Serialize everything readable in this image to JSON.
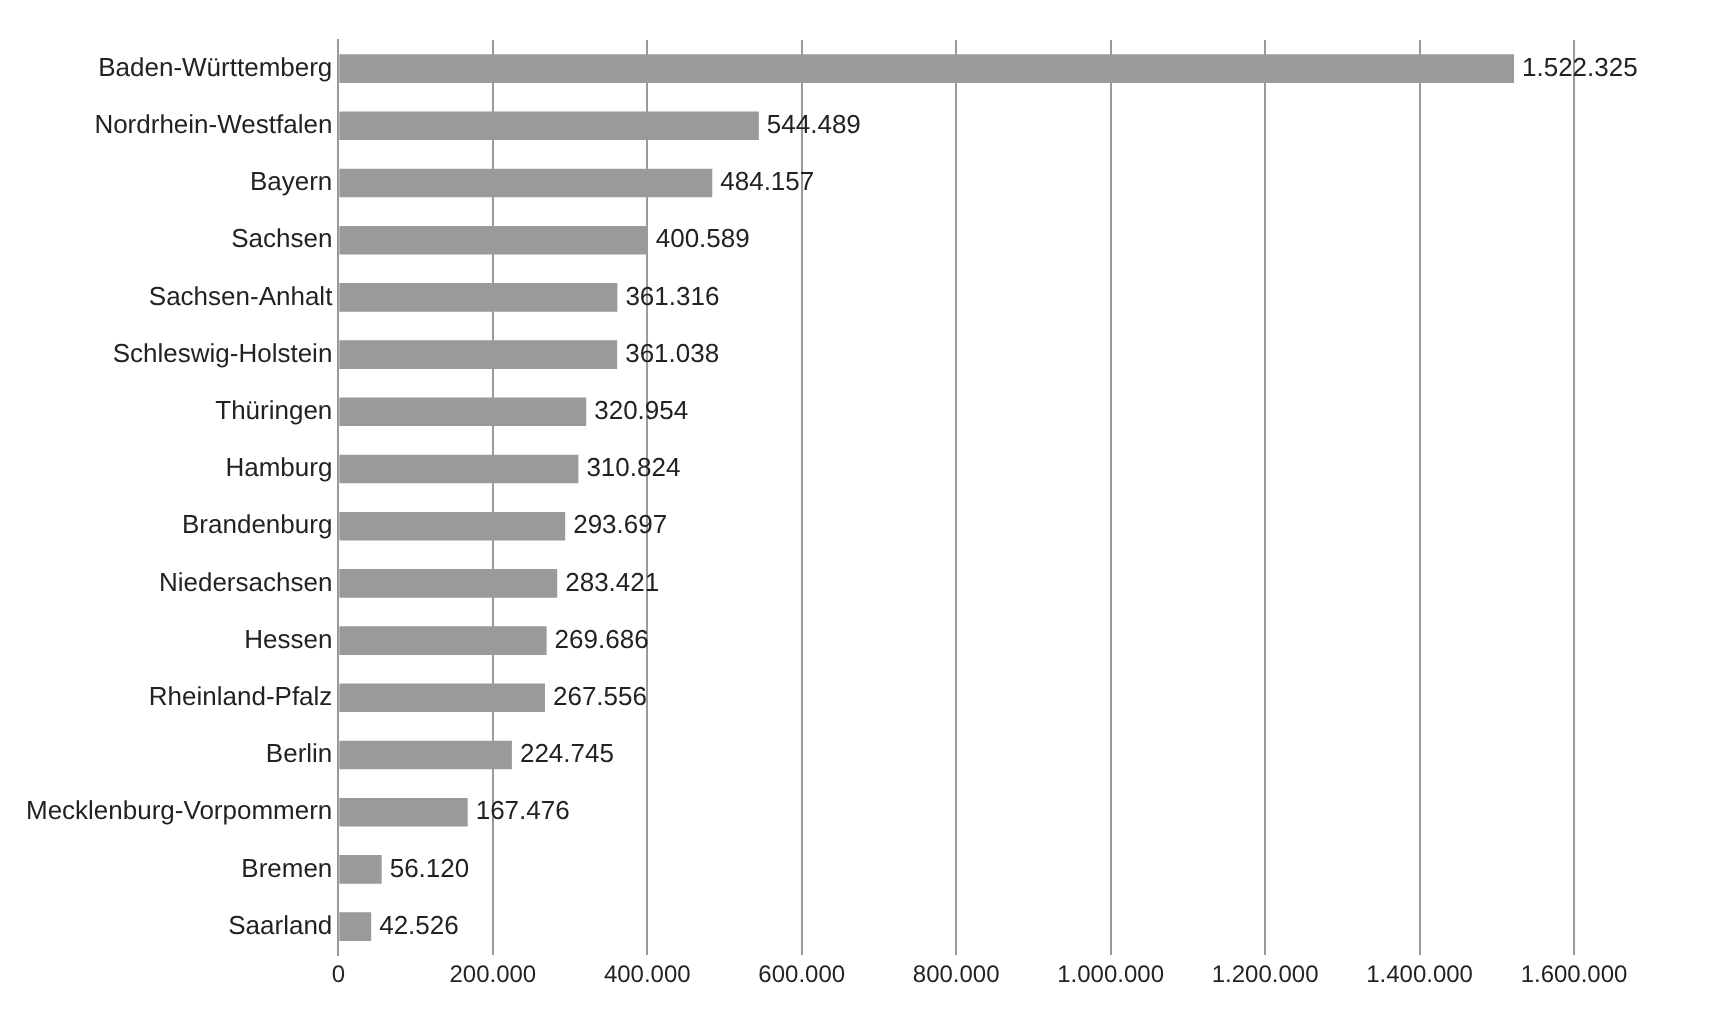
{
  "chart_data": {
    "type": "bar",
    "orientation": "horizontal",
    "categories": [
      "Baden-Württemberg",
      "Nordrhein-Westfalen",
      "Bayern",
      "Sachsen",
      "Sachsen-Anhalt",
      "Schleswig-Holstein",
      "Thüringen",
      "Hamburg",
      "Brandenburg",
      "Niedersachsen",
      "Hessen",
      "Rheinland-Pfalz",
      "Berlin",
      "Mecklenburg-Vorpommern",
      "Bremen",
      "Saarland"
    ],
    "values": [
      1522325,
      544489,
      484157,
      400589,
      361316,
      361038,
      320954,
      310824,
      293697,
      283421,
      269686,
      267556,
      224745,
      167476,
      56120,
      42526
    ],
    "value_labels": [
      "1.522.325",
      "544.489",
      "484.157",
      "400.589",
      "361.316",
      "361.038",
      "320.954",
      "310.824",
      "293.697",
      "283.421",
      "269.686",
      "267.556",
      "224.745",
      "167.476",
      "56.120",
      "42.526"
    ],
    "color": "#9a9a9a",
    "xlim": [
      0,
      1600000
    ],
    "xticks": [
      {
        "value": 0,
        "label": "0"
      },
      {
        "value": 200000,
        "label": "200.000"
      },
      {
        "value": 400000,
        "label": "400.000"
      },
      {
        "value": 600000,
        "label": "600.000"
      },
      {
        "value": 800000,
        "label": "800.000"
      },
      {
        "value": 1000000,
        "label": "1.000.000"
      },
      {
        "value": 1200000,
        "label": "1.200.000"
      },
      {
        "value": 1400000,
        "label": "1.400.000"
      },
      {
        "value": 1600000,
        "label": "1.600.000"
      }
    ],
    "grid": "x",
    "legend": false
  }
}
